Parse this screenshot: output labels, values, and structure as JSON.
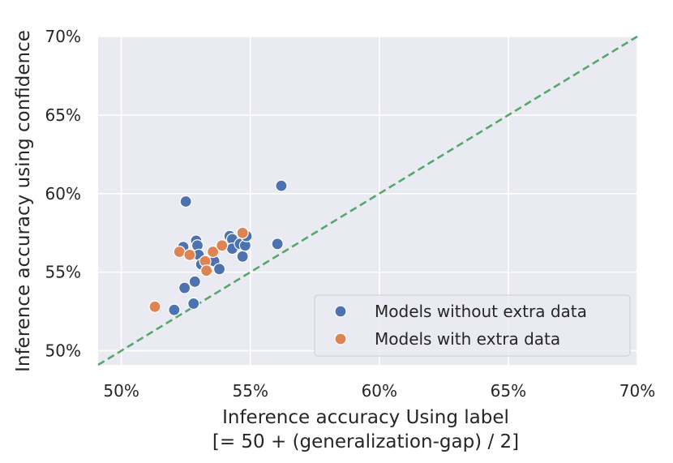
{
  "chart_data": {
    "type": "scatter",
    "title": "",
    "xlabel": "Inference accuracy Using label",
    "xlabel_line2": "[= 50 + (generalization-gap) / 2]",
    "ylabel": "Inference accuracy using confidence",
    "xlim": [
      49.1,
      70
    ],
    "ylim": [
      49.1,
      70
    ],
    "x_ticks": [
      50,
      55,
      60,
      65,
      70
    ],
    "y_ticks": [
      50,
      55,
      60,
      65,
      70
    ],
    "x_tick_labels": [
      "50%",
      "55%",
      "60%",
      "65%",
      "70%"
    ],
    "y_tick_labels": [
      "50%",
      "55%",
      "60%",
      "65%",
      "70%"
    ],
    "grid": true,
    "legend_position": "bottom-right",
    "reference_line": {
      "type": "y = x",
      "style": "dashed",
      "color": "#55a868"
    },
    "series": [
      {
        "name": "Models without extra data",
        "color": "#4c72b0",
        "points": [
          [
            52.5,
            59.5
          ],
          [
            56.2,
            60.5
          ],
          [
            52.4,
            56.6
          ],
          [
            52.9,
            57.0
          ],
          [
            52.95,
            56.7
          ],
          [
            53.0,
            56.1
          ],
          [
            53.1,
            55.5
          ],
          [
            53.5,
            55.8
          ],
          [
            53.6,
            55.7
          ],
          [
            53.8,
            55.2
          ],
          [
            54.2,
            57.3
          ],
          [
            54.3,
            57.1
          ],
          [
            54.3,
            56.5
          ],
          [
            54.6,
            56.8
          ],
          [
            54.7,
            56.0
          ],
          [
            54.8,
            56.7
          ],
          [
            54.85,
            57.3
          ],
          [
            56.05,
            56.8
          ],
          [
            52.45,
            54.0
          ],
          [
            52.85,
            54.4
          ],
          [
            52.8,
            53.0
          ],
          [
            52.05,
            52.6
          ]
        ]
      },
      {
        "name": "Models with extra data",
        "color": "#dd8452",
        "points": [
          [
            52.25,
            56.3
          ],
          [
            52.65,
            56.1
          ],
          [
            53.25,
            55.7
          ],
          [
            53.3,
            55.1
          ],
          [
            53.55,
            56.3
          ],
          [
            53.9,
            56.7
          ],
          [
            54.7,
            57.5
          ],
          [
            51.3,
            52.8
          ]
        ]
      }
    ]
  }
}
